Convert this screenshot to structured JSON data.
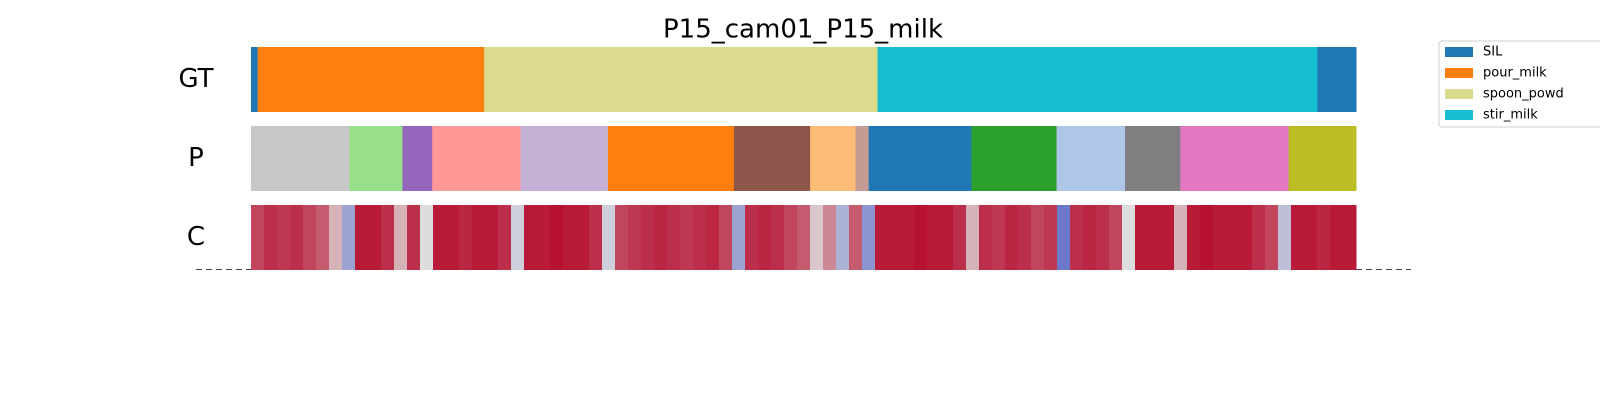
{
  "chart_data": {
    "type": "segmentation",
    "title": "P15_cam01_P15_milk",
    "xlim": [
      0,
      1
    ],
    "legend": {
      "labels": [
        "SIL",
        "pour_milk",
        "spoon_powd",
        "stir_milk"
      ],
      "colors": [
        "#1f77b4",
        "#ff7f0e",
        "#dbdb8d",
        "#17becf"
      ]
    },
    "rows": [
      {
        "label": "GT",
        "bounds": [
          0,
          0.006,
          0.211,
          0.567,
          0.965,
          1
        ],
        "colors": [
          "#1f77b4",
          "#ff7f0e",
          "#dbdb8d",
          "#17becf",
          "#1f77b4"
        ]
      },
      {
        "label": "P",
        "bounds": [
          0,
          0.089,
          0.137,
          0.164,
          0.244,
          0.323,
          0.437,
          0.506,
          0.547,
          0.559,
          0.652,
          0.729,
          0.791,
          0.841,
          0.939,
          1
        ],
        "colors": [
          "#c7c7c7",
          "#98df8a",
          "#9467bd",
          "#ff9896",
          "#c5b0d5",
          "#ff7f0e",
          "#8c564b",
          "#ffbb78",
          "#c49c94",
          "#1f77b4",
          "#2ca02c",
          "#aec7e8",
          "#7f7f7f",
          "#e377c2",
          "#bcbd22"
        ]
      },
      {
        "label": "C",
        "clim": [
          0,
          1
        ],
        "values": [
          0.85,
          0.9,
          0.88,
          0.9,
          0.85,
          0.8,
          0.6,
          0.3,
          0.95,
          0.95,
          0.9,
          0.6,
          0.9,
          0.5,
          0.95,
          0.95,
          0.92,
          0.95,
          0.95,
          0.9,
          0.45,
          0.95,
          0.95,
          0.97,
          0.95,
          0.95,
          0.9,
          0.45,
          0.85,
          0.88,
          0.9,
          0.92,
          0.9,
          0.88,
          0.9,
          0.92,
          0.85,
          0.3,
          0.9,
          0.92,
          0.9,
          0.85,
          0.8,
          0.55,
          0.7,
          0.35,
          0.8,
          0.25,
          0.95,
          0.95,
          0.95,
          0.97,
          0.95,
          0.95,
          0.9,
          0.6,
          0.9,
          0.88,
          0.92,
          0.9,
          0.85,
          0.88,
          0.15,
          0.9,
          0.92,
          0.9,
          0.85,
          0.5,
          0.95,
          0.95,
          0.95,
          0.6,
          0.95,
          0.97,
          0.95,
          0.95,
          0.95,
          0.9,
          0.85,
          0.4,
          0.95,
          0.95,
          0.92,
          0.95,
          0.95
        ]
      }
    ]
  }
}
